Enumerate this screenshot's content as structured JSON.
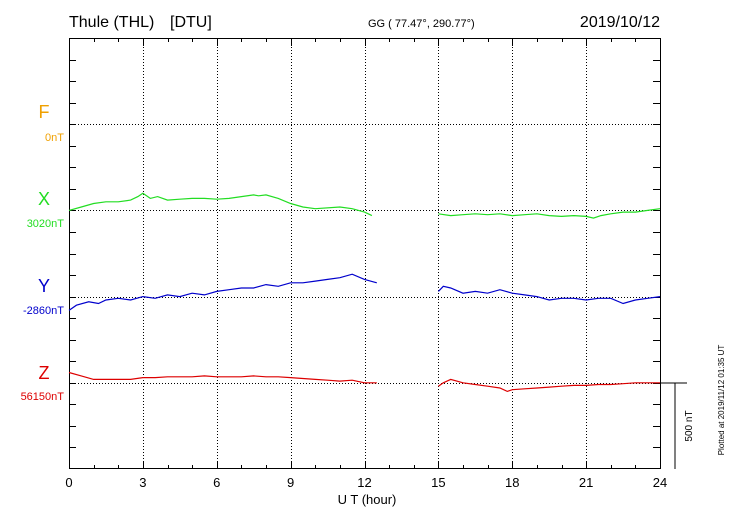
{
  "header": {
    "station": "Thule (THL)",
    "institute": "[DTU]",
    "coords": "GG ( 77.47°, 290.77°)",
    "date": "2019/10/12"
  },
  "footer": {
    "scale_label": "500 nT",
    "plotted_note": "Plotted at 2019/11/12 01:35 UT"
  },
  "chart_data": {
    "type": "line",
    "xlabel": "U T (hour)",
    "xlim": [
      0,
      24
    ],
    "xticks": [
      0,
      3,
      6,
      9,
      12,
      15,
      18,
      21,
      24
    ],
    "grid": true,
    "scale_bar_nT": 500,
    "series": [
      {
        "name": "F",
        "baseline_label": "0nT",
        "color": "#f0a000",
        "x": [],
        "y": []
      },
      {
        "name": "X",
        "baseline_label": "3020nT",
        "color": "#22dd22",
        "x": [
          0,
          0.5,
          1,
          1.5,
          2,
          2.5,
          2.8,
          3,
          3.3,
          3.6,
          4,
          4.5,
          5,
          5.5,
          6,
          6.5,
          7,
          7.5,
          7.7,
          8,
          8.5,
          9,
          9.5,
          10,
          11,
          11.5,
          12,
          12.3,
          15,
          15.5,
          16,
          16.5,
          17,
          17.5,
          18,
          18.5,
          19,
          19.5,
          20,
          20.5,
          21,
          21.3,
          21.6,
          22,
          22.5,
          23,
          23.5,
          24
        ],
        "y": [
          3020,
          3040,
          3060,
          3070,
          3070,
          3080,
          3100,
          3120,
          3090,
          3100,
          3080,
          3085,
          3090,
          3090,
          3085,
          3090,
          3100,
          3110,
          3105,
          3110,
          3090,
          3060,
          3040,
          3030,
          3040,
          3030,
          3010,
          2990,
          3000,
          2990,
          2995,
          3000,
          2995,
          3000,
          2990,
          2995,
          3000,
          2990,
          2985,
          2990,
          2985,
          2975,
          2990,
          3000,
          3010,
          3010,
          3020,
          3030
        ]
      },
      {
        "name": "Y",
        "baseline_label": "-2860nT",
        "color": "#0000cc",
        "x": [
          0,
          0.3,
          0.8,
          1.2,
          1.5,
          2,
          2.5,
          3,
          3.5,
          4,
          4.5,
          5,
          5.5,
          6,
          6.5,
          7,
          7.5,
          8,
          8.5,
          9,
          9.5,
          10,
          10.5,
          11,
          11.5,
          12,
          12.5,
          15,
          15.2,
          15.5,
          16,
          16.5,
          17,
          17.5,
          18,
          18.5,
          19,
          19.5,
          20,
          20.5,
          21,
          21.5,
          22,
          22.5,
          23,
          23.5,
          24
        ],
        "y": [
          -2940,
          -2910,
          -2890,
          -2900,
          -2880,
          -2870,
          -2880,
          -2860,
          -2870,
          -2850,
          -2860,
          -2840,
          -2850,
          -2830,
          -2820,
          -2810,
          -2810,
          -2790,
          -2800,
          -2780,
          -2780,
          -2770,
          -2760,
          -2750,
          -2730,
          -2760,
          -2780,
          -2830,
          -2800,
          -2810,
          -2840,
          -2830,
          -2840,
          -2820,
          -2840,
          -2850,
          -2860,
          -2880,
          -2870,
          -2870,
          -2880,
          -2870,
          -2870,
          -2900,
          -2880,
          -2870,
          -2860
        ]
      },
      {
        "name": "Z",
        "baseline_label": "56150nT",
        "color": "#dd0000",
        "x": [
          0,
          0.5,
          1,
          1.5,
          2,
          2.5,
          3,
          3.5,
          4,
          4.5,
          5,
          5.5,
          6,
          6.5,
          7,
          7.5,
          8,
          8.5,
          9,
          9.5,
          10,
          10.5,
          11,
          11.5,
          12,
          12.5,
          15,
          15.2,
          15.5,
          16,
          16.5,
          17,
          17.5,
          17.8,
          18,
          18.5,
          19,
          19.5,
          20,
          20.5,
          21,
          21.5,
          22,
          22.5,
          23,
          23.5,
          24
        ],
        "y": [
          56210,
          56190,
          56170,
          56170,
          56170,
          56170,
          56180,
          56180,
          56185,
          56185,
          56185,
          56190,
          56185,
          56185,
          56185,
          56190,
          56185,
          56185,
          56180,
          56175,
          56170,
          56165,
          56160,
          56165,
          56150,
          56150,
          56130,
          56150,
          56170,
          56150,
          56140,
          56130,
          56120,
          56100,
          56110,
          56115,
          56120,
          56125,
          56130,
          56135,
          56135,
          56140,
          56140,
          56145,
          56150,
          56150,
          56150
        ]
      }
    ]
  }
}
